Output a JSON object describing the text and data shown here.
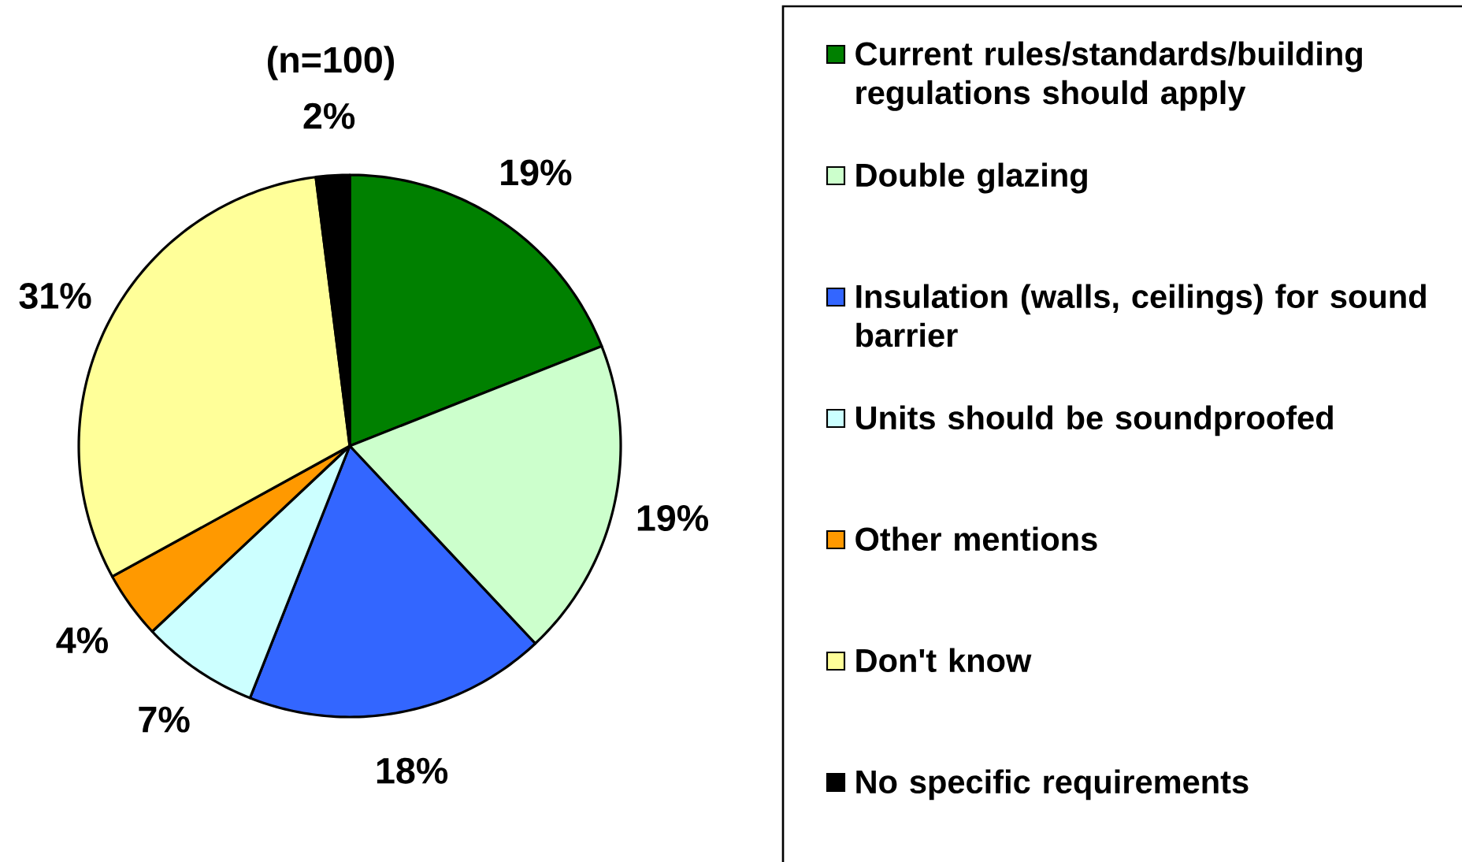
{
  "chart_data": {
    "type": "pie",
    "title": "(n=100)",
    "categories": [
      "Current rules/standards/building regulations should apply",
      "Double glazing",
      "Insulation (walls, ceilings) for sound barrier",
      "Units should be soundproofed",
      "Other mentions",
      "Don't know",
      "No specific requirements"
    ],
    "values": [
      19,
      19,
      18,
      7,
      4,
      31,
      2
    ],
    "value_labels": [
      "19%",
      "19%",
      "18%",
      "7%",
      "4%",
      "31%",
      "2%"
    ],
    "colors": [
      "#008000",
      "#ccffcc",
      "#3366ff",
      "#ccffff",
      "#ff9900",
      "#ffff99",
      "#000000"
    ],
    "legend": "right"
  }
}
